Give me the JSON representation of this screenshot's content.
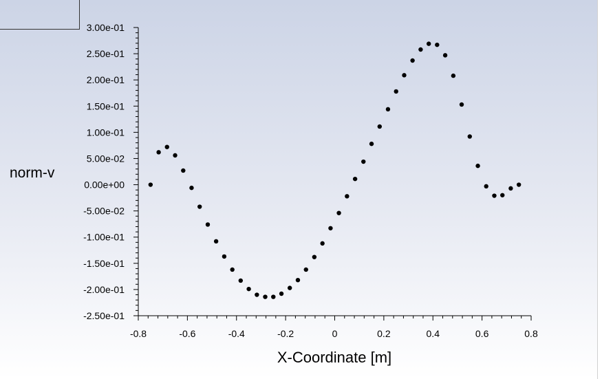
{
  "chart_data": {
    "type": "scatter",
    "title": "",
    "xlabel": "X-Coordinate [m]",
    "ylabel": "norm-v",
    "xlim": [
      -0.8,
      0.8
    ],
    "ylim": [
      -0.25,
      0.3
    ],
    "xticks": [
      {
        "value": -0.8,
        "label": "-0.8"
      },
      {
        "value": -0.6,
        "label": "-0.6"
      },
      {
        "value": -0.4,
        "label": "-0.4"
      },
      {
        "value": -0.2,
        "label": "-0.2"
      },
      {
        "value": 0,
        "label": "0"
      },
      {
        "value": 0.2,
        "label": "0.2"
      },
      {
        "value": 0.4,
        "label": "0.4"
      },
      {
        "value": 0.6,
        "label": "0.6"
      },
      {
        "value": 0.8,
        "label": "0.8"
      }
    ],
    "yticks": [
      {
        "value": 0.3,
        "label": "3.00e-01"
      },
      {
        "value": 0.25,
        "label": "2.50e-01"
      },
      {
        "value": 0.2,
        "label": "2.00e-01"
      },
      {
        "value": 0.15,
        "label": "1.50e-01"
      },
      {
        "value": 0.1,
        "label": "1.00e-01"
      },
      {
        "value": 0.05,
        "label": "5.00e-02"
      },
      {
        "value": 0,
        "label": "0.00e+00"
      },
      {
        "value": -0.05,
        "label": "-5.00e-02"
      },
      {
        "value": -0.1,
        "label": "-1.00e-01"
      },
      {
        "value": -0.15,
        "label": "-1.50e-01"
      },
      {
        "value": -0.2,
        "label": "-2.00e-01"
      },
      {
        "value": -0.25,
        "label": "-2.50e-01"
      }
    ],
    "grid": false,
    "marker_color": "#000000",
    "points": [
      {
        "x": -0.75,
        "y": 0.0
      },
      {
        "x": -0.717,
        "y": 0.062
      },
      {
        "x": -0.683,
        "y": 0.072
      },
      {
        "x": -0.65,
        "y": 0.056
      },
      {
        "x": -0.617,
        "y": 0.027
      },
      {
        "x": -0.583,
        "y": -0.006
      },
      {
        "x": -0.55,
        "y": -0.042
      },
      {
        "x": -0.517,
        "y": -0.076
      },
      {
        "x": -0.483,
        "y": -0.108
      },
      {
        "x": -0.45,
        "y": -0.137
      },
      {
        "x": -0.417,
        "y": -0.162
      },
      {
        "x": -0.383,
        "y": -0.183
      },
      {
        "x": -0.35,
        "y": -0.199
      },
      {
        "x": -0.317,
        "y": -0.21
      },
      {
        "x": -0.283,
        "y": -0.214
      },
      {
        "x": -0.25,
        "y": -0.214
      },
      {
        "x": -0.217,
        "y": -0.208
      },
      {
        "x": -0.183,
        "y": -0.197
      },
      {
        "x": -0.15,
        "y": -0.182
      },
      {
        "x": -0.117,
        "y": -0.162
      },
      {
        "x": -0.083,
        "y": -0.138
      },
      {
        "x": -0.05,
        "y": -0.112
      },
      {
        "x": -0.017,
        "y": -0.083
      },
      {
        "x": 0.017,
        "y": -0.054
      },
      {
        "x": 0.05,
        "y": -0.022
      },
      {
        "x": 0.083,
        "y": 0.011
      },
      {
        "x": 0.117,
        "y": 0.044
      },
      {
        "x": 0.15,
        "y": 0.078
      },
      {
        "x": 0.183,
        "y": 0.111
      },
      {
        "x": 0.217,
        "y": 0.144
      },
      {
        "x": 0.25,
        "y": 0.178
      },
      {
        "x": 0.283,
        "y": 0.209
      },
      {
        "x": 0.317,
        "y": 0.237
      },
      {
        "x": 0.35,
        "y": 0.258
      },
      {
        "x": 0.383,
        "y": 0.269
      },
      {
        "x": 0.417,
        "y": 0.267
      },
      {
        "x": 0.45,
        "y": 0.247
      },
      {
        "x": 0.483,
        "y": 0.208
      },
      {
        "x": 0.517,
        "y": 0.153
      },
      {
        "x": 0.55,
        "y": 0.092
      },
      {
        "x": 0.583,
        "y": 0.036
      },
      {
        "x": 0.617,
        "y": -0.003
      },
      {
        "x": 0.65,
        "y": -0.021
      },
      {
        "x": 0.683,
        "y": -0.02
      },
      {
        "x": 0.717,
        "y": -0.007
      },
      {
        "x": 0.75,
        "y": 0.0
      }
    ]
  }
}
